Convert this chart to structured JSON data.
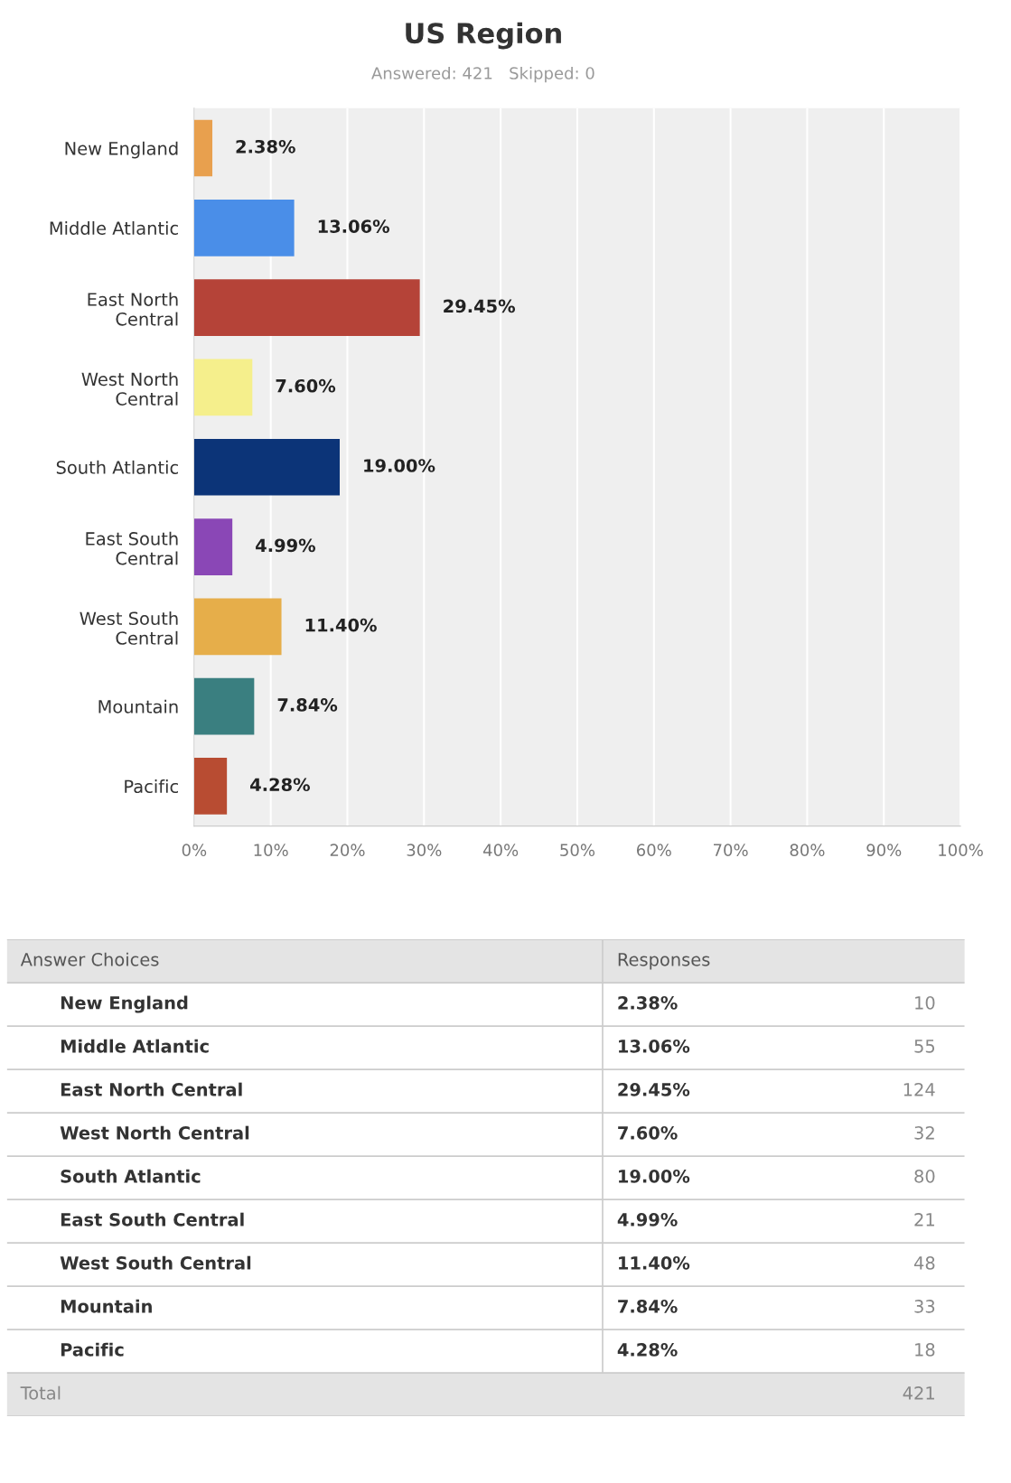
{
  "chart_data": [
    {
      "type": "bar",
      "orientation": "horizontal",
      "title": "US Region",
      "subtitle": "Answered: 421   Skipped: 0",
      "categories": [
        "New England",
        "Middle Atlantic",
        "East North Central",
        "West North Central",
        "South Atlantic",
        "East South Central",
        "West South Central",
        "Mountain",
        "Pacific"
      ],
      "values": [
        2.38,
        13.06,
        29.45,
        7.6,
        19.0,
        4.99,
        11.4,
        7.84,
        4.28
      ],
      "value_labels": [
        "2.38%",
        "13.06%",
        "29.45%",
        "7.60%",
        "19.00%",
        "4.99%",
        "11.40%",
        "7.84%",
        "4.28%"
      ],
      "colors": [
        "#e8a04e",
        "#4a8ee8",
        "#b54338",
        "#f5ef8c",
        "#0c3478",
        "#8a47b6",
        "#e6ae4a",
        "#3a7f80",
        "#b84c32"
      ],
      "xlim": [
        0,
        100
      ],
      "xticks": [
        {
          "value": 0,
          "label": "0%"
        },
        {
          "value": 10,
          "label": "10%"
        },
        {
          "value": 20,
          "label": "20%"
        },
        {
          "value": 30,
          "label": "30%"
        },
        {
          "value": 40,
          "label": "40%"
        },
        {
          "value": 50,
          "label": "50%"
        },
        {
          "value": 60,
          "label": "60%"
        },
        {
          "value": 70,
          "label": "70%"
        },
        {
          "value": 80,
          "label": "80%"
        },
        {
          "value": 90,
          "label": "90%"
        },
        {
          "value": 100,
          "label": "100%"
        }
      ],
      "grid": "x",
      "legend": false
    },
    {
      "type": "other",
      "categories": [
        "New England",
        "Middle Atlantic",
        "East North Central",
        "West North Central",
        "South Atlantic",
        "East South Central",
        "West South Central",
        "Mountain",
        "Pacific"
      ],
      "value_labels": [
        "2.38%",
        "13.06%",
        "29.45%",
        "7.60%",
        "19.00%",
        "4.99%",
        "11.40%",
        "7.84%",
        "4.28%"
      ],
      "annotations": [
        "Answer Choices",
        "Responses",
        "10",
        "55",
        "124",
        "32",
        "80",
        "21",
        "48",
        "33",
        "18",
        "Total",
        "421"
      ]
    }
  ]
}
